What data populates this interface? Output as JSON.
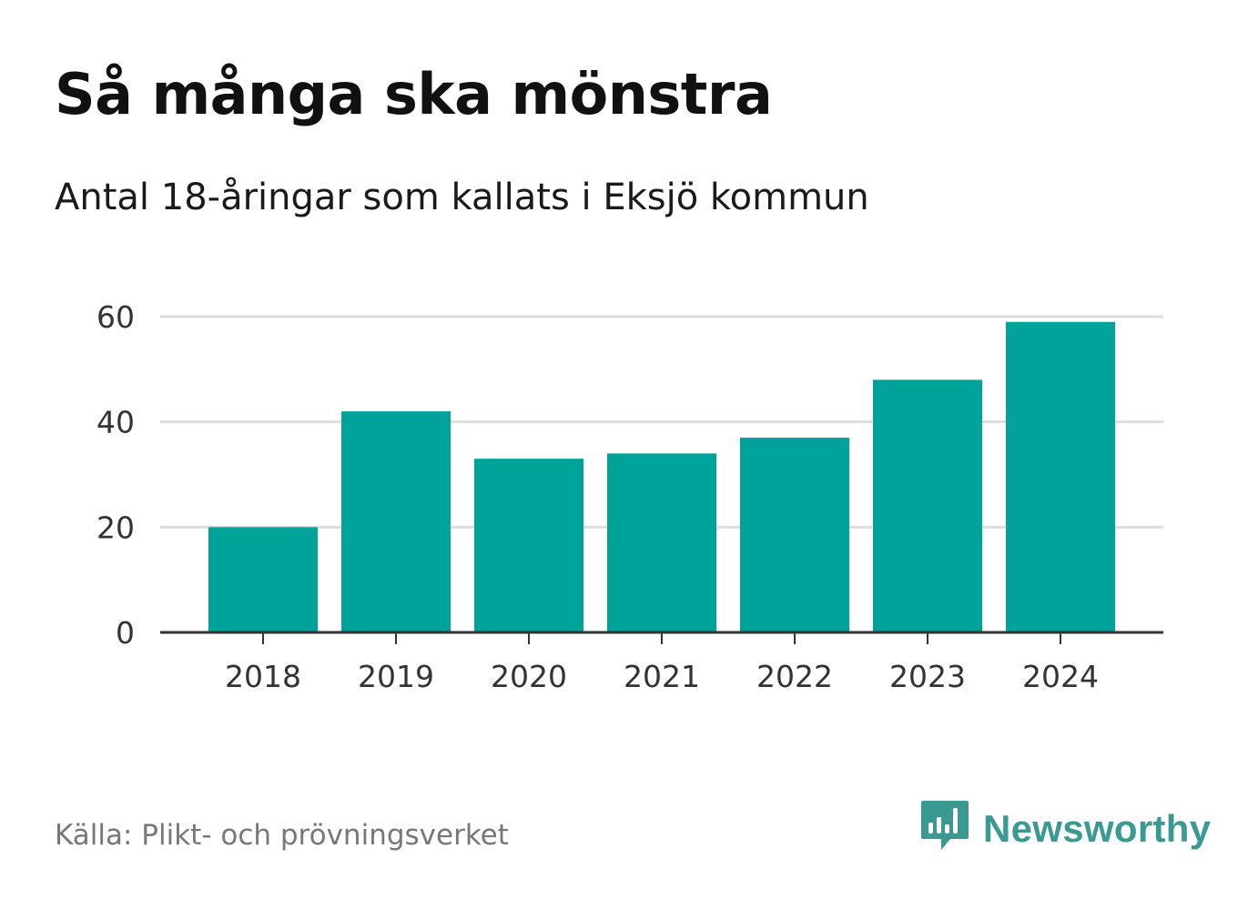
{
  "title": "Så många ska mönstra",
  "subtitle": "Antal 18-åringar som kallats i Eksjö kommun",
  "source": "Källa: Plikt- och prövningsverket",
  "brand": {
    "name": "Newsworthy",
    "icon": "newsworthy-logo-icon",
    "color": "#3a9a91"
  },
  "colors": {
    "bar": "#00a39a",
    "grid": "#dddddd",
    "axis": "#333333",
    "tick_text": "#333333"
  },
  "chart_data": {
    "type": "bar",
    "title": "Så många ska mönstra",
    "subtitle": "Antal 18-åringar som kallats i Eksjö kommun",
    "xlabel": "",
    "ylabel": "",
    "categories": [
      "2018",
      "2019",
      "2020",
      "2021",
      "2022",
      "2023",
      "2024"
    ],
    "values": [
      20,
      42,
      33,
      34,
      37,
      48,
      59
    ],
    "ylim": [
      0,
      60
    ],
    "yticks": [
      0,
      20,
      40,
      60
    ],
    "grid": true,
    "legend": "none"
  }
}
